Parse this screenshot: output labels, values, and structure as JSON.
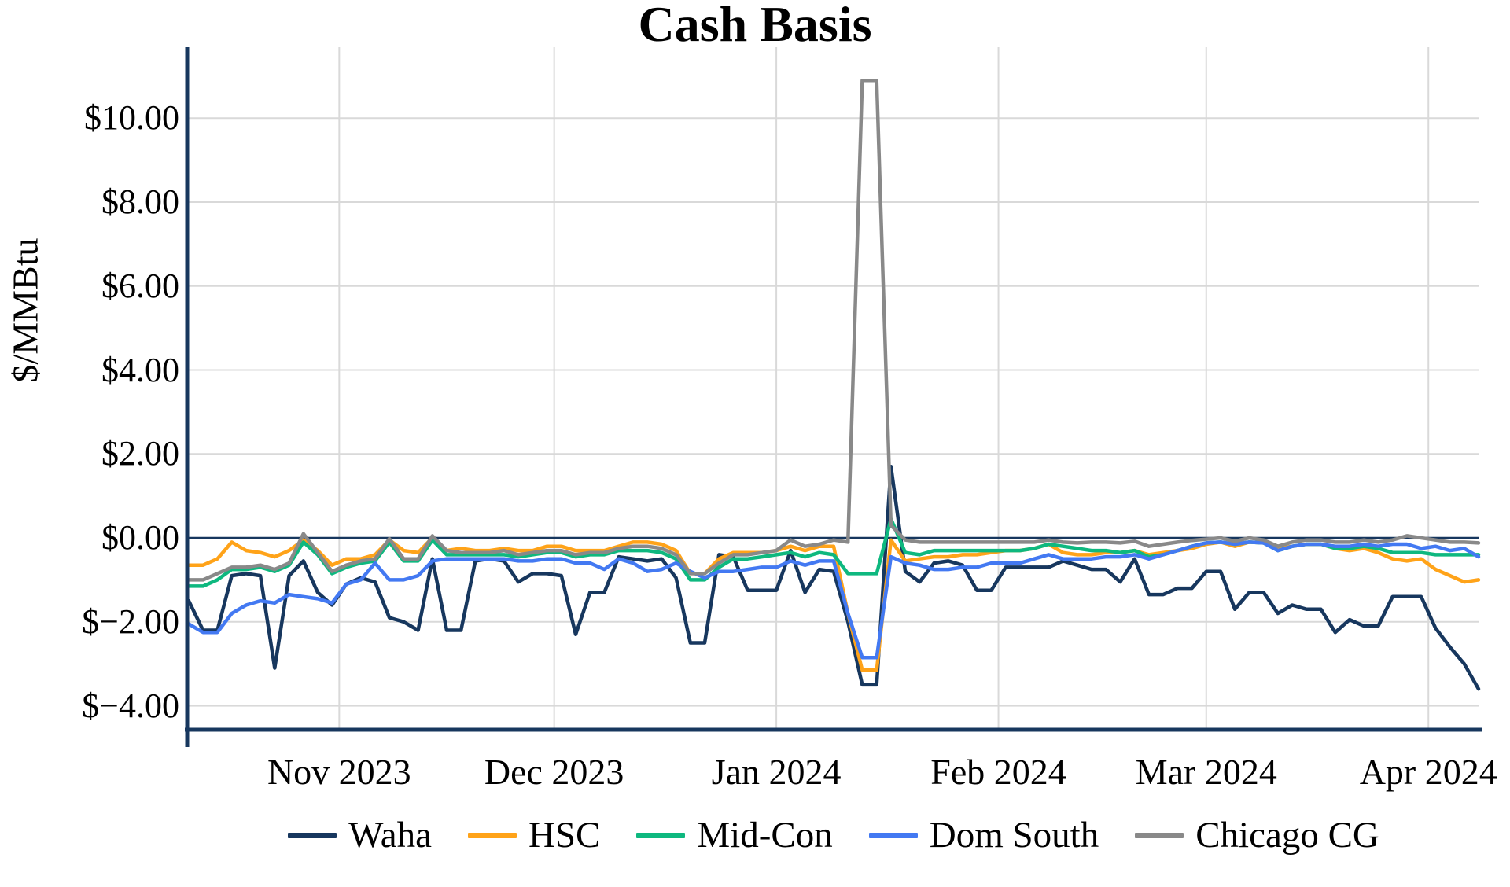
{
  "title": "Cash Basis",
  "y_axis": {
    "label": "$/MMBtu",
    "ticks": [
      {
        "value": 10,
        "label": "$10.00"
      },
      {
        "value": 8,
        "label": "$8.00"
      },
      {
        "value": 6,
        "label": "$6.00"
      },
      {
        "value": 4,
        "label": "$4.00"
      },
      {
        "value": 2,
        "label": "$2.00"
      },
      {
        "value": 0,
        "label": "$0.00"
      },
      {
        "value": -2,
        "label": "$−2.00"
      },
      {
        "value": -4,
        "label": "$−4.00"
      }
    ]
  },
  "x_axis": {
    "ticks": [
      {
        "date": "2023-11-01",
        "label": "Nov 2023"
      },
      {
        "date": "2023-12-01",
        "label": "Dec 2023"
      },
      {
        "date": "2024-01-01",
        "label": "Jan 2024"
      },
      {
        "date": "2024-02-01",
        "label": "Feb 2024"
      },
      {
        "date": "2024-03-01",
        "label": "Mar 2024"
      },
      {
        "date": "2024-04-01",
        "label": "Apr 2024"
      }
    ]
  },
  "colors": {
    "grid": "#D9D9D9",
    "axis": "#17375E",
    "zero_line": "#17375E",
    "background": "#FFFFFF"
  },
  "chart_data": {
    "type": "line",
    "title": "Cash Basis",
    "ylabel": "$/MMBtu",
    "xlabel": "",
    "ylim": [
      -4.57,
      11.69
    ],
    "grid": true,
    "legend_position": "bottom",
    "units": "$/MMBtu",
    "x": [
      "2023-10-11",
      "2023-10-13",
      "2023-10-15",
      "2023-10-17",
      "2023-10-19",
      "2023-10-21",
      "2023-10-23",
      "2023-10-25",
      "2023-10-27",
      "2023-10-29",
      "2023-10-31",
      "2023-11-02",
      "2023-11-04",
      "2023-11-06",
      "2023-11-08",
      "2023-11-10",
      "2023-11-12",
      "2023-11-14",
      "2023-11-16",
      "2023-11-18",
      "2023-11-20",
      "2023-11-22",
      "2023-11-24",
      "2023-11-26",
      "2023-11-28",
      "2023-11-30",
      "2023-12-02",
      "2023-12-04",
      "2023-12-06",
      "2023-12-08",
      "2023-12-10",
      "2023-12-12",
      "2023-12-14",
      "2023-12-16",
      "2023-12-18",
      "2023-12-20",
      "2023-12-22",
      "2023-12-24",
      "2023-12-26",
      "2023-12-28",
      "2023-12-30",
      "2024-01-01",
      "2024-01-03",
      "2024-01-05",
      "2024-01-07",
      "2024-01-09",
      "2024-01-11",
      "2024-01-13",
      "2024-01-15",
      "2024-01-17",
      "2024-01-19",
      "2024-01-21",
      "2024-01-23",
      "2024-01-25",
      "2024-01-27",
      "2024-01-29",
      "2024-01-31",
      "2024-02-02",
      "2024-02-04",
      "2024-02-06",
      "2024-02-08",
      "2024-02-10",
      "2024-02-12",
      "2024-02-14",
      "2024-02-16",
      "2024-02-18",
      "2024-02-20",
      "2024-02-22",
      "2024-02-24",
      "2024-02-26",
      "2024-02-28",
      "2024-03-01",
      "2024-03-03",
      "2024-03-05",
      "2024-03-07",
      "2024-03-09",
      "2024-03-11",
      "2024-03-13",
      "2024-03-15",
      "2024-03-17",
      "2024-03-19",
      "2024-03-21",
      "2024-03-23",
      "2024-03-25",
      "2024-03-27",
      "2024-03-29",
      "2024-03-31",
      "2024-04-02",
      "2024-04-04",
      "2024-04-06",
      "2024-04-08"
    ],
    "series": [
      {
        "name": "Waha",
        "color": "#17375E",
        "values": [
          -1.5,
          -2.2,
          -2.2,
          -0.9,
          -0.85,
          -0.9,
          -3.1,
          -0.9,
          -0.55,
          -1.3,
          -1.6,
          -1.1,
          -0.95,
          -1.05,
          -1.9,
          -2.0,
          -2.2,
          -0.5,
          -2.2,
          -2.2,
          -0.55,
          -0.5,
          -0.55,
          -1.05,
          -0.85,
          -0.85,
          -0.9,
          -2.3,
          -1.3,
          -1.3,
          -0.45,
          -0.5,
          -0.55,
          -0.5,
          -0.95,
          -2.5,
          -2.5,
          -0.4,
          -0.45,
          -1.25,
          -1.25,
          -1.25,
          -0.3,
          -1.3,
          -0.75,
          -0.8,
          -2.0,
          -3.5,
          -3.5,
          1.7,
          -0.8,
          -1.05,
          -0.6,
          -0.55,
          -0.65,
          -1.25,
          -1.25,
          -0.7,
          -0.7,
          -0.7,
          -0.7,
          -0.55,
          -0.65,
          -0.75,
          -0.75,
          -1.05,
          -0.5,
          -1.35,
          -1.35,
          -1.2,
          -1.2,
          -0.8,
          -0.8,
          -1.7,
          -1.3,
          -1.3,
          -1.8,
          -1.6,
          -1.7,
          -1.7,
          -2.25,
          -1.95,
          -2.1,
          -2.1,
          -1.4,
          -1.4,
          -1.4,
          -2.15,
          -2.6,
          -3.0,
          -3.6
        ]
      },
      {
        "name": "HSC",
        "color": "#FFA319",
        "values": [
          -0.65,
          -0.65,
          -0.5,
          -0.1,
          -0.3,
          -0.35,
          -0.45,
          -0.3,
          -0.05,
          -0.3,
          -0.65,
          -0.5,
          -0.5,
          -0.4,
          -0.05,
          -0.3,
          -0.35,
          0.0,
          -0.3,
          -0.25,
          -0.3,
          -0.3,
          -0.25,
          -0.3,
          -0.3,
          -0.2,
          -0.2,
          -0.3,
          -0.3,
          -0.3,
          -0.2,
          -0.1,
          -0.1,
          -0.15,
          -0.3,
          -0.85,
          -0.85,
          -0.5,
          -0.35,
          -0.35,
          -0.35,
          -0.3,
          -0.2,
          -0.3,
          -0.2,
          -0.2,
          -1.8,
          -3.15,
          -3.15,
          -0.05,
          -0.55,
          -0.5,
          -0.45,
          -0.45,
          -0.4,
          -0.4,
          -0.35,
          -0.3,
          -0.3,
          -0.25,
          -0.15,
          -0.35,
          -0.4,
          -0.4,
          -0.35,
          -0.35,
          -0.3,
          -0.4,
          -0.35,
          -0.3,
          -0.25,
          -0.15,
          -0.1,
          -0.2,
          -0.1,
          -0.12,
          -0.25,
          -0.2,
          -0.15,
          -0.15,
          -0.25,
          -0.3,
          -0.25,
          -0.35,
          -0.5,
          -0.55,
          -0.5,
          -0.75,
          -0.9,
          -1.05,
          -1.0
        ]
      },
      {
        "name": "Mid-Con",
        "color": "#0EB87F",
        "values": [
          -1.15,
          -1.15,
          -1.0,
          -0.75,
          -0.75,
          -0.7,
          -0.8,
          -0.65,
          -0.1,
          -0.4,
          -0.85,
          -0.7,
          -0.6,
          -0.55,
          -0.1,
          -0.55,
          -0.55,
          -0.05,
          -0.4,
          -0.4,
          -0.4,
          -0.4,
          -0.4,
          -0.45,
          -0.4,
          -0.35,
          -0.35,
          -0.45,
          -0.4,
          -0.4,
          -0.3,
          -0.3,
          -0.3,
          -0.35,
          -0.5,
          -1.0,
          -1.0,
          -0.7,
          -0.5,
          -0.5,
          -0.45,
          -0.4,
          -0.35,
          -0.45,
          -0.35,
          -0.4,
          -0.85,
          -0.85,
          -0.85,
          0.45,
          -0.35,
          -0.4,
          -0.3,
          -0.3,
          -0.3,
          -0.3,
          -0.3,
          -0.3,
          -0.3,
          -0.25,
          -0.15,
          -0.2,
          -0.25,
          -0.3,
          -0.3,
          -0.35,
          -0.3,
          -0.45,
          -0.4,
          -0.3,
          -0.2,
          -0.12,
          -0.1,
          -0.15,
          -0.1,
          -0.12,
          -0.3,
          -0.2,
          -0.15,
          -0.15,
          -0.25,
          -0.25,
          -0.2,
          -0.25,
          -0.35,
          -0.35,
          -0.35,
          -0.4,
          -0.4,
          -0.4,
          -0.4
        ]
      },
      {
        "name": "Dom South",
        "color": "#4379F2",
        "values": [
          -2.05,
          -2.25,
          -2.25,
          -1.8,
          -1.6,
          -1.5,
          -1.55,
          -1.35,
          -1.4,
          -1.45,
          -1.55,
          -1.1,
          -1.0,
          -0.6,
          -1.0,
          -1.0,
          -0.9,
          -0.55,
          -0.5,
          -0.5,
          -0.5,
          -0.5,
          -0.5,
          -0.55,
          -0.55,
          -0.5,
          -0.5,
          -0.6,
          -0.6,
          -0.75,
          -0.5,
          -0.6,
          -0.8,
          -0.75,
          -0.6,
          -0.8,
          -0.95,
          -0.8,
          -0.8,
          -0.75,
          -0.7,
          -0.7,
          -0.55,
          -0.65,
          -0.55,
          -0.55,
          -1.8,
          -2.85,
          -2.85,
          -0.45,
          -0.6,
          -0.65,
          -0.75,
          -0.75,
          -0.7,
          -0.7,
          -0.6,
          -0.6,
          -0.6,
          -0.5,
          -0.4,
          -0.5,
          -0.5,
          -0.5,
          -0.45,
          -0.45,
          -0.4,
          -0.5,
          -0.4,
          -0.3,
          -0.2,
          -0.12,
          -0.1,
          -0.15,
          -0.1,
          -0.12,
          -0.3,
          -0.2,
          -0.15,
          -0.15,
          -0.2,
          -0.2,
          -0.15,
          -0.2,
          -0.15,
          -0.15,
          -0.25,
          -0.2,
          -0.3,
          -0.25,
          -0.45
        ]
      },
      {
        "name": "Chicago CG",
        "color": "#898989",
        "values": [
          -1.0,
          -1.0,
          -0.85,
          -0.7,
          -0.7,
          -0.65,
          -0.75,
          -0.6,
          0.1,
          -0.35,
          -0.8,
          -0.65,
          -0.55,
          -0.5,
          -0.02,
          -0.5,
          -0.5,
          0.05,
          -0.3,
          -0.35,
          -0.35,
          -0.35,
          -0.3,
          -0.4,
          -0.35,
          -0.3,
          -0.3,
          -0.4,
          -0.35,
          -0.35,
          -0.25,
          -0.2,
          -0.2,
          -0.25,
          -0.4,
          -0.85,
          -0.85,
          -0.6,
          -0.4,
          -0.4,
          -0.35,
          -0.3,
          -0.05,
          -0.2,
          -0.15,
          -0.05,
          -0.1,
          10.9,
          10.9,
          0.3,
          -0.05,
          -0.1,
          -0.1,
          -0.1,
          -0.1,
          -0.1,
          -0.1,
          -0.1,
          -0.1,
          -0.1,
          -0.05,
          -0.1,
          -0.12,
          -0.1,
          -0.1,
          -0.12,
          -0.08,
          -0.2,
          -0.15,
          -0.1,
          -0.06,
          -0.03,
          0.0,
          -0.08,
          0.0,
          -0.05,
          -0.2,
          -0.1,
          -0.05,
          -0.05,
          -0.1,
          -0.1,
          -0.05,
          -0.1,
          -0.05,
          0.05,
          0.0,
          -0.05,
          -0.1,
          -0.1,
          -0.12
        ]
      }
    ]
  }
}
